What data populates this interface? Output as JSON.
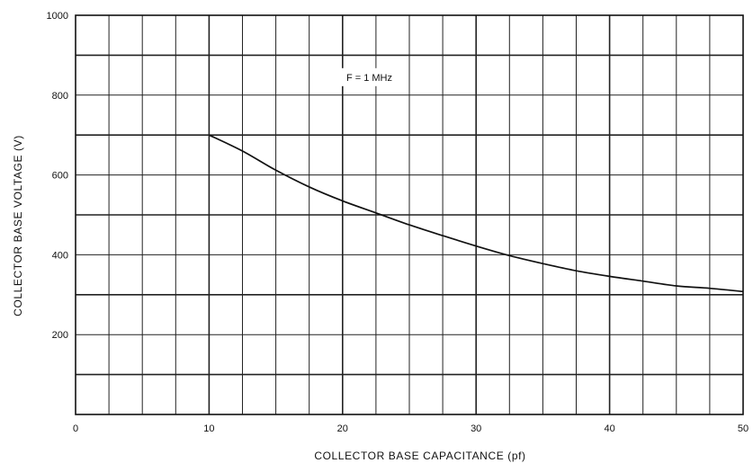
{
  "chart_data": {
    "type": "line",
    "title": "",
    "xlabel": "COLLECTOR BASE CAPACITANCE (pf)",
    "ylabel": "COLLECTOR BASE VOLTAGE (V)",
    "xlim": [
      0,
      50
    ],
    "ylim": [
      0,
      1000
    ],
    "x_ticks": [
      0,
      10,
      20,
      30,
      40,
      50
    ],
    "x_tick_labels": [
      "0",
      "10",
      "20",
      "30",
      "40",
      "50"
    ],
    "y_ticks": [
      200,
      400,
      600,
      800,
      1000
    ],
    "y_tick_labels": [
      "200",
      "400",
      "600",
      "800",
      "1000"
    ],
    "grid": true,
    "annotation": "F = 1 MHz",
    "series": [
      {
        "x": [
          10,
          12.5,
          15,
          17.5,
          20,
          22.5,
          25,
          27.5,
          30,
          32.5,
          35,
          37.5,
          40,
          42.5,
          45,
          47.5,
          50
        ],
        "y": [
          700,
          660,
          612,
          570,
          535,
          505,
          475,
          448,
          422,
          398,
          378,
          360,
          346,
          334,
          322,
          316,
          308
        ]
      }
    ],
    "colors": {
      "line": "#111111",
      "grid": "#222222",
      "background": "#ffffff"
    }
  }
}
